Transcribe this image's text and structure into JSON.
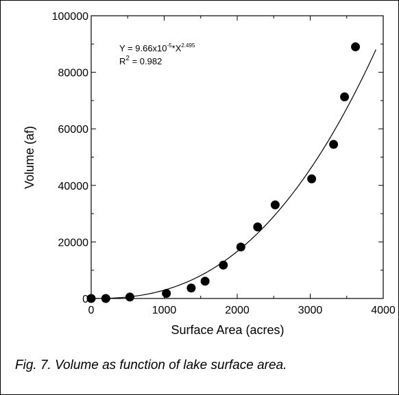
{
  "caption": "Fig. 7. Volume as function of lake surface area.",
  "chart_data": {
    "type": "scatter",
    "xlabel": "Surface Area (acres)",
    "ylabel": "Volume (af)",
    "xlim": [
      0,
      4000
    ],
    "ylim": [
      0,
      100000
    ],
    "x_ticks": [
      "0",
      "1000",
      "2000",
      "3000",
      "4000"
    ],
    "y_ticks": [
      "0",
      "20000",
      "40000",
      "60000",
      "80000",
      "100000"
    ],
    "grid": false,
    "equation": {
      "prefix": "Y = 9.66x10",
      "exp1": "-5",
      "mid": "*X",
      "exp2": "2.495",
      "r2_label": "R",
      "r2_exp": "2",
      "r2_value": " = 0.982"
    },
    "points": [
      {
        "x": 0,
        "y": 0
      },
      {
        "x": 200,
        "y": 0
      },
      {
        "x": 530,
        "y": 500
      },
      {
        "x": 1030,
        "y": 1800
      },
      {
        "x": 1370,
        "y": 3700
      },
      {
        "x": 1560,
        "y": 6100
      },
      {
        "x": 1810,
        "y": 11800
      },
      {
        "x": 2050,
        "y": 18200
      },
      {
        "x": 2280,
        "y": 25300
      },
      {
        "x": 2520,
        "y": 33100
      },
      {
        "x": 3020,
        "y": 42300
      },
      {
        "x": 3320,
        "y": 54500
      },
      {
        "x": 3470,
        "y": 71300
      },
      {
        "x": 3620,
        "y": 89000
      }
    ],
    "fit": {
      "a": 9.66e-05,
      "b": 2.495,
      "x_min": 0,
      "x_max": 3900
    }
  }
}
